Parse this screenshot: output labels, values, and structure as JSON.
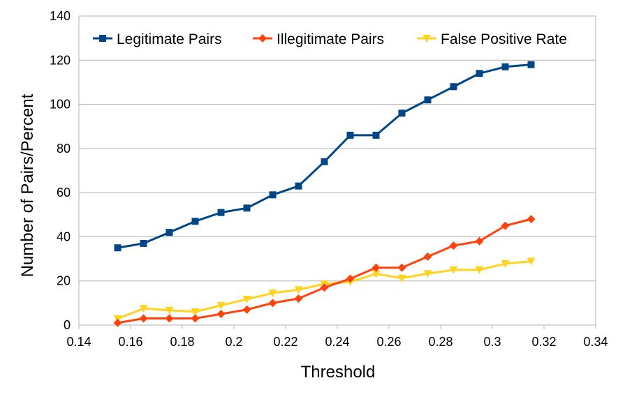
{
  "chart_data": {
    "type": "line",
    "title": "",
    "xlabel": "Threshold",
    "ylabel": "Number of Pairs/Percent",
    "xlim": [
      0.14,
      0.34
    ],
    "ylim": [
      0,
      140
    ],
    "xticks": [
      "0.14",
      "0.16",
      "0.18",
      "0.2",
      "0.22",
      "0.24",
      "0.26",
      "0.28",
      "0.3",
      "0.32",
      "0.34"
    ],
    "yticks": [
      "0",
      "20",
      "40",
      "60",
      "80",
      "100",
      "120",
      "140"
    ],
    "grid": "horizontal",
    "legend_position": "top",
    "x": [
      0.155,
      0.165,
      0.175,
      0.185,
      0.195,
      0.205,
      0.215,
      0.225,
      0.235,
      0.245,
      0.255,
      0.265,
      0.275,
      0.285,
      0.295,
      0.305,
      0.315
    ],
    "series": [
      {
        "name": "Legitimate Pairs",
        "color": "#004586",
        "marker": "square",
        "values": [
          35,
          37,
          42,
          47,
          51,
          53,
          59,
          63,
          74,
          86,
          86,
          96,
          102,
          108,
          114,
          117,
          118
        ]
      },
      {
        "name": "Illegitimate Pairs",
        "color": "#ff420e",
        "marker": "diamond",
        "values": [
          1,
          3,
          3,
          3,
          5,
          7,
          10,
          12,
          17,
          21,
          26,
          26,
          31,
          36,
          38,
          45,
          48
        ]
      },
      {
        "name": "False Positive Rate",
        "color": "#ffd320",
        "marker": "triangle-down",
        "values": [
          2.9,
          7.5,
          6.7,
          6.0,
          8.9,
          11.7,
          14.5,
          16.0,
          18.7,
          19.6,
          23.2,
          21.3,
          23.3,
          25.0,
          25.0,
          27.8,
          28.9
        ]
      }
    ]
  }
}
